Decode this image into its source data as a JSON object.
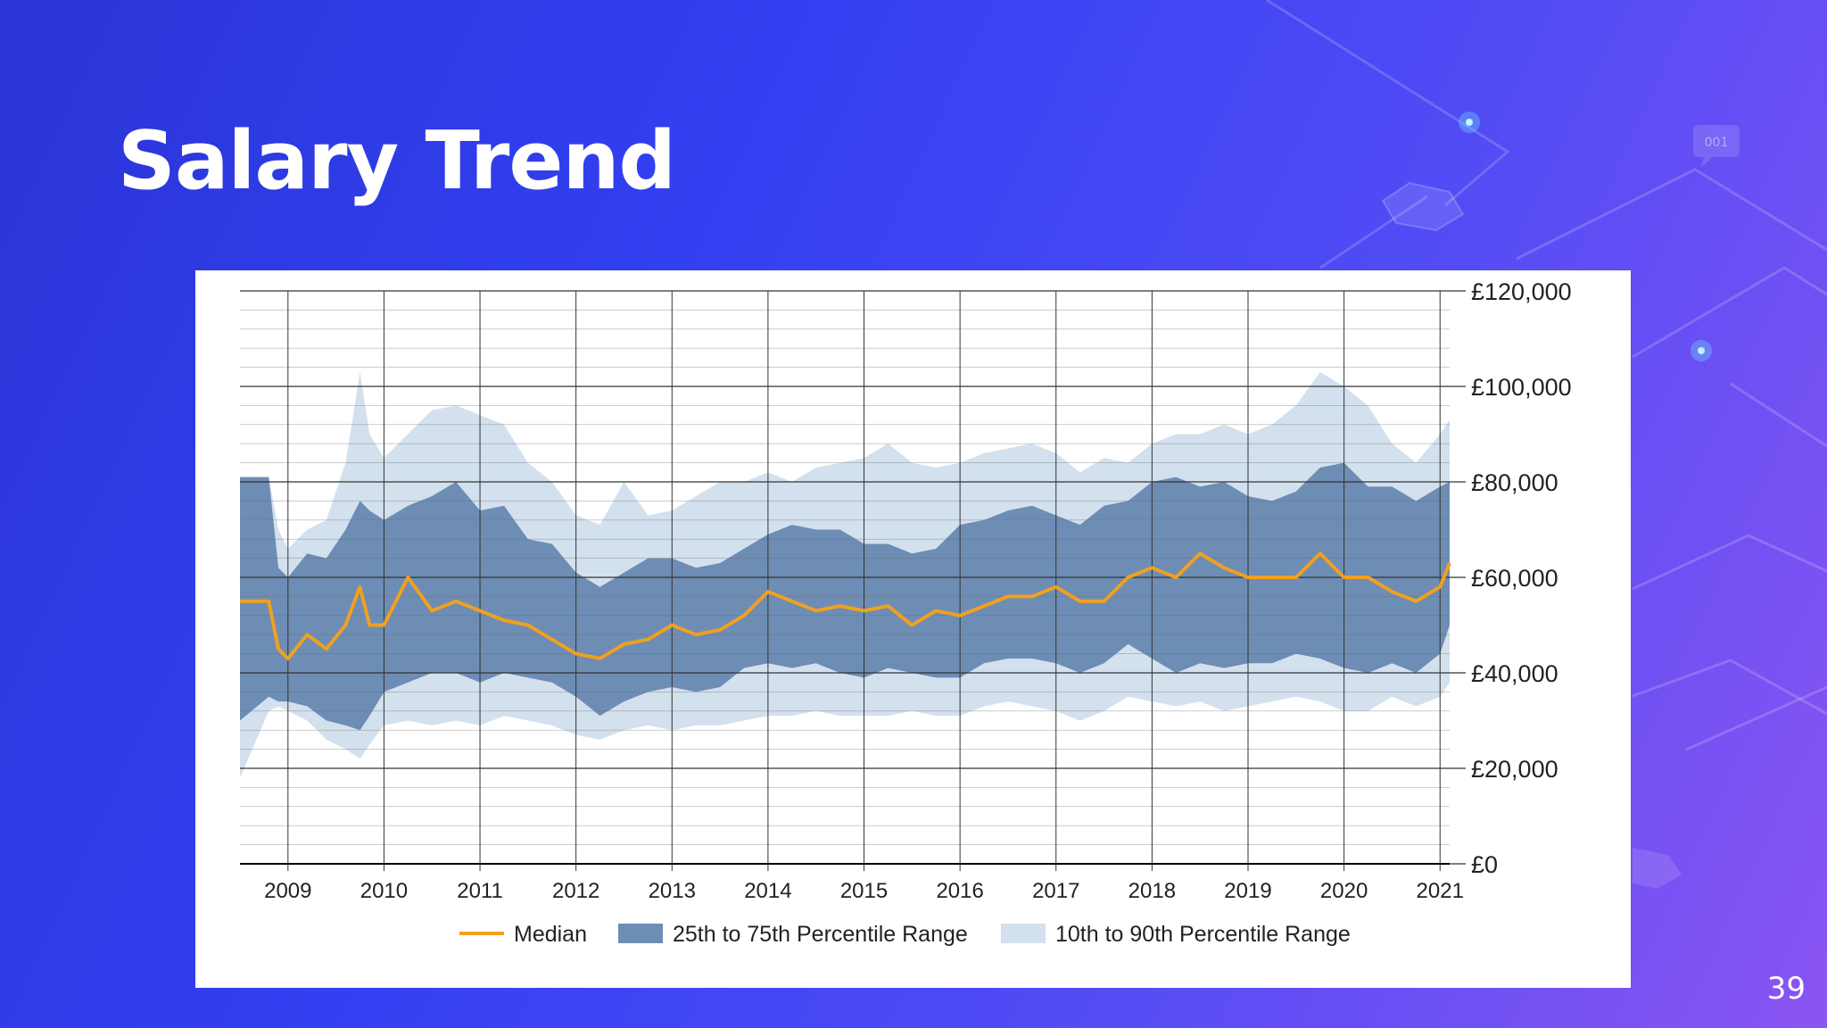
{
  "slide": {
    "title": "Salary Trend",
    "page_number": "39"
  },
  "colors": {
    "background_start": "#2a35d6",
    "background_end": "#8a55f2",
    "median": "#f0a020",
    "iqr_band": "#6d8db4",
    "decile_band": "#d3e0ee",
    "grid": "#333333"
  },
  "decor_icons": [
    "node-glow-icon",
    "chat-bubble-icon",
    "hexagon-icon"
  ],
  "decor_text": {
    "chat_bubble": "001"
  },
  "chart_data": {
    "type": "area",
    "title": "",
    "xlabel": "",
    "ylabel": "",
    "x_ticks": [
      "2009",
      "2010",
      "2011",
      "2012",
      "2013",
      "2014",
      "2015",
      "2016",
      "2017",
      "2018",
      "2019",
      "2020",
      "2021"
    ],
    "y_ticks": [
      "£0",
      "£20,000",
      "£40,000",
      "£60,000",
      "£80,000",
      "£100,000",
      "£120,000"
    ],
    "xlim": [
      2008.5,
      2021.1
    ],
    "ylim": [
      0,
      120000
    ],
    "grid": true,
    "legend_position": "bottom",
    "x": [
      2008.5,
      2008.8,
      2008.9,
      2009.0,
      2009.2,
      2009.4,
      2009.6,
      2009.75,
      2009.85,
      2010.0,
      2010.25,
      2010.5,
      2010.75,
      2011.0,
      2011.25,
      2011.5,
      2011.75,
      2012.0,
      2012.25,
      2012.5,
      2012.75,
      2013.0,
      2013.25,
      2013.5,
      2013.75,
      2014.0,
      2014.25,
      2014.5,
      2014.75,
      2015.0,
      2015.25,
      2015.5,
      2015.75,
      2016.0,
      2016.25,
      2016.5,
      2016.75,
      2017.0,
      2017.25,
      2017.5,
      2017.75,
      2018.0,
      2018.25,
      2018.5,
      2018.75,
      2019.0,
      2019.25,
      2019.5,
      2019.75,
      2020.0,
      2020.25,
      2020.5,
      2020.75,
      2021.0,
      2021.1
    ],
    "series": [
      {
        "name": "Median",
        "kind": "line",
        "values": [
          55000,
          55000,
          45000,
          43000,
          48000,
          45000,
          50000,
          58000,
          50000,
          50000,
          60000,
          53000,
          55000,
          53000,
          51000,
          50000,
          47000,
          44000,
          43000,
          46000,
          47000,
          50000,
          48000,
          49000,
          52000,
          57000,
          55000,
          53000,
          54000,
          53000,
          54000,
          50000,
          53000,
          52000,
          54000,
          56000,
          56000,
          58000,
          55000,
          55000,
          60000,
          62000,
          60000,
          65000,
          62000,
          60000,
          60000,
          60000,
          65000,
          60000,
          60000,
          57000,
          55000,
          58000,
          63000
        ]
      },
      {
        "name": "25th to 75th Percentile Range",
        "kind": "band",
        "low": [
          30000,
          35000,
          34000,
          34000,
          33000,
          30000,
          29000,
          28000,
          31000,
          36000,
          38000,
          40000,
          40000,
          38000,
          40000,
          39000,
          38000,
          35000,
          31000,
          34000,
          36000,
          37000,
          36000,
          37000,
          41000,
          42000,
          41000,
          42000,
          40000,
          39000,
          41000,
          40000,
          39000,
          39000,
          42000,
          43000,
          43000,
          42000,
          40000,
          42000,
          46000,
          43000,
          40000,
          42000,
          41000,
          42000,
          42000,
          44000,
          43000,
          41000,
          40000,
          42000,
          40000,
          44000,
          50000
        ],
        "high": [
          81000,
          81000,
          62000,
          60000,
          65000,
          64000,
          70000,
          76000,
          74000,
          72000,
          75000,
          77000,
          80000,
          74000,
          75000,
          68000,
          67000,
          61000,
          58000,
          61000,
          64000,
          64000,
          62000,
          63000,
          66000,
          69000,
          71000,
          70000,
          70000,
          67000,
          67000,
          65000,
          66000,
          71000,
          72000,
          74000,
          75000,
          73000,
          71000,
          75000,
          76000,
          80000,
          81000,
          79000,
          80000,
          77000,
          76000,
          78000,
          83000,
          84000,
          79000,
          79000,
          76000,
          79000,
          80000
        ]
      },
      {
        "name": "10th to 90th Percentile Range",
        "kind": "band",
        "low": [
          18000,
          32000,
          33000,
          32000,
          30000,
          26000,
          24000,
          22000,
          25000,
          29000,
          30000,
          29000,
          30000,
          29000,
          31000,
          30000,
          29000,
          27000,
          26000,
          28000,
          29000,
          28000,
          29000,
          29000,
          30000,
          31000,
          31000,
          32000,
          31000,
          31000,
          31000,
          32000,
          31000,
          31000,
          33000,
          34000,
          33000,
          32000,
          30000,
          32000,
          35000,
          34000,
          33000,
          34000,
          32000,
          33000,
          34000,
          35000,
          34000,
          32000,
          32000,
          35000,
          33000,
          35000,
          38000
        ],
        "high": [
          81000,
          81000,
          70000,
          66000,
          70000,
          72000,
          84000,
          103000,
          90000,
          85000,
          90000,
          95000,
          96000,
          94000,
          92000,
          84000,
          80000,
          73000,
          71000,
          80000,
          73000,
          74000,
          77000,
          80000,
          80000,
          82000,
          80000,
          83000,
          84000,
          85000,
          88000,
          84000,
          83000,
          84000,
          86000,
          87000,
          88000,
          86000,
          82000,
          85000,
          84000,
          88000,
          90000,
          90000,
          92000,
          90000,
          92000,
          96000,
          103000,
          100000,
          96000,
          88000,
          84000,
          90000,
          93000
        ]
      }
    ]
  }
}
